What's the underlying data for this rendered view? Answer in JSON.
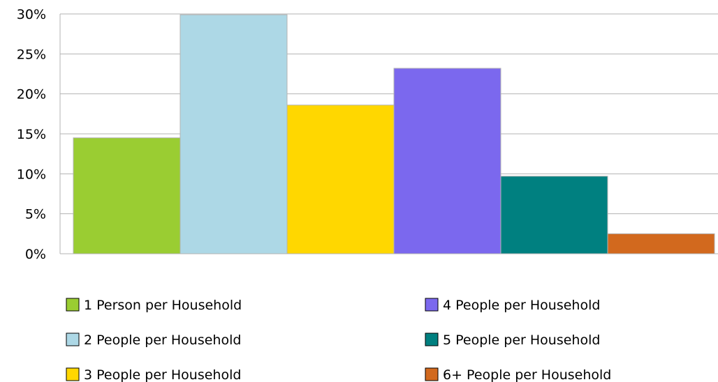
{
  "chart_data": {
    "type": "bar",
    "title": "",
    "xlabel": "",
    "ylabel": "",
    "ylim": [
      0,
      30
    ],
    "y_ticks": [
      0,
      5,
      10,
      15,
      20,
      25,
      30
    ],
    "y_tick_format": "percent",
    "grid": true,
    "legend_position": "bottom",
    "series": [
      {
        "name": "1 Person per Household",
        "value": 14.5,
        "color": "#9ACD32"
      },
      {
        "name": "2 People per Household",
        "value": 29.9,
        "color": "#ADD8E6"
      },
      {
        "name": "3 People per Household",
        "value": 18.6,
        "color": "#FFD700"
      },
      {
        "name": "4 People per Household",
        "value": 23.2,
        "color": "#7B68EE"
      },
      {
        "name": "5 People per Household",
        "value": 9.7,
        "color": "#008080"
      },
      {
        "name": "6+ People per Household",
        "value": 2.5,
        "color": "#D2691E"
      }
    ]
  }
}
